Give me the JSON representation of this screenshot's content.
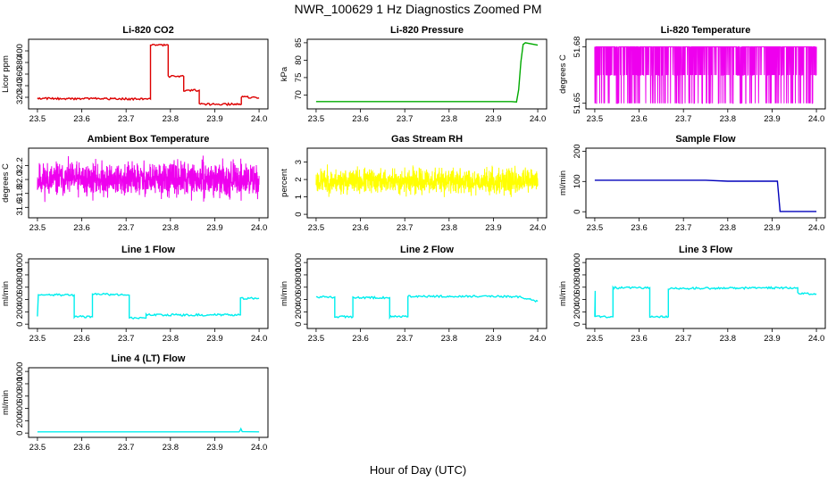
{
  "title": "NWR_100629  1 Hz Diagnostics Zoomed PM",
  "xlabel": "Hour of Day (UTC)",
  "chart_data": [
    {
      "type": "line",
      "title": "Li-820 CO2",
      "ylabel": "Licor ppm",
      "color": "#dd0000",
      "xlim": [
        23.48,
        24.02
      ],
      "ylim": [
        300,
        420
      ],
      "xticks": [
        "23.5",
        "23.6",
        "23.7",
        "23.8",
        "23.9",
        "24.0"
      ],
      "yticks": [
        "320",
        "340",
        "360",
        "380",
        "400"
      ],
      "style": "step",
      "x": [
        23.5,
        23.755,
        23.755,
        23.795,
        23.795,
        23.83,
        23.83,
        23.865,
        23.865,
        23.96,
        23.96,
        24.0
      ],
      "y": [
        318,
        317,
        410,
        410,
        356,
        356,
        332,
        332,
        308,
        308,
        321,
        319
      ]
    },
    {
      "type": "line",
      "title": "Li-820 Pressure",
      "ylabel": "kPa",
      "color": "#00aa00",
      "xlim": [
        23.48,
        24.02
      ],
      "ylim": [
        66,
        86
      ],
      "xticks": [
        "23.5",
        "23.6",
        "23.7",
        "23.8",
        "23.9",
        "24.0"
      ],
      "yticks": [
        "70",
        "75",
        "80",
        "85"
      ],
      "style": "line",
      "x": [
        23.5,
        23.94,
        23.952,
        23.957,
        23.962,
        23.967,
        23.972,
        24.0
      ],
      "y": [
        68.1,
        68.1,
        68.0,
        71.5,
        79.5,
        84.5,
        85.0,
        84.3
      ]
    },
    {
      "type": "line",
      "title": "Li-820 Temperature",
      "ylabel": "degrees C",
      "color": "#ee00ee",
      "xlim": [
        23.48,
        24.02
      ],
      "ylim": [
        51.647,
        51.684
      ],
      "xticks": [
        "23.5",
        "23.6",
        "23.7",
        "23.8",
        "23.9",
        "24.0"
      ],
      "yticks": [
        "51.65",
        "51.68"
      ],
      "style": "noise",
      "levels": [
        51.65,
        51.665,
        51.68
      ],
      "noise_seed": 7
    },
    {
      "type": "line",
      "title": "Ambient Box Temperature",
      "ylabel": "degrees C",
      "color": "#ee00ee",
      "xlim": [
        23.48,
        24.02
      ],
      "ylim": [
        31.45,
        32.45
      ],
      "xticks": [
        "23.5",
        "23.6",
        "23.7",
        "23.8",
        "23.9",
        "24.0"
      ],
      "yticks": [
        "31.6",
        "31.8",
        "32.0",
        "32.2"
      ],
      "style": "noise",
      "center": 32.0,
      "spread": 0.22,
      "noise_seed": 11
    },
    {
      "type": "line",
      "title": "Gas Stream RH",
      "ylabel": "percent",
      "color": "#ffff00",
      "xlim": [
        23.48,
        24.02
      ],
      "ylim": [
        -0.2,
        3.8
      ],
      "xticks": [
        "23.5",
        "23.6",
        "23.7",
        "23.8",
        "23.9",
        "24.0"
      ],
      "yticks": [
        "0",
        "1",
        "2",
        "3"
      ],
      "style": "noise",
      "center": 1.9,
      "spread": 0.65,
      "noise_seed": 23
    },
    {
      "type": "line",
      "title": "Sample Flow",
      "ylabel": "ml/min",
      "color": "#0000bb",
      "xlim": [
        23.48,
        24.02
      ],
      "ylim": [
        -20,
        210
      ],
      "xticks": [
        "23.5",
        "23.6",
        "23.7",
        "23.8",
        "23.9",
        "24.0"
      ],
      "yticks": [
        "0",
        "100",
        "200"
      ],
      "style": "line",
      "x": [
        23.5,
        23.75,
        23.8,
        23.9,
        23.912,
        23.918,
        24.0
      ],
      "y": [
        104,
        104,
        101,
        101,
        101,
        1,
        1
      ]
    },
    {
      "type": "line",
      "title": "Line 1 Flow",
      "ylabel": "ml/min",
      "color": "#00eeee",
      "xlim": [
        23.48,
        24.02
      ],
      "ylim": [
        -70,
        1060
      ],
      "xticks": [
        "23.5",
        "23.6",
        "23.7",
        "23.8",
        "23.9",
        "24.0"
      ],
      "yticks": [
        "0",
        "200",
        "400",
        "600",
        "800",
        "1000"
      ],
      "style": "step",
      "x": [
        23.5,
        23.502,
        23.583,
        23.583,
        23.624,
        23.624,
        23.707,
        23.707,
        23.745,
        23.745,
        23.958,
        23.958,
        24.0
      ],
      "y": [
        120,
        480,
        470,
        120,
        120,
        490,
        470,
        100,
        100,
        150,
        150,
        420,
        420
      ]
    },
    {
      "type": "line",
      "title": "Line 2 Flow",
      "ylabel": "ml/min",
      "color": "#00eeee",
      "xlim": [
        23.48,
        24.02
      ],
      "ylim": [
        -70,
        1060
      ],
      "xticks": [
        "23.5",
        "23.6",
        "23.7",
        "23.8",
        "23.9",
        "24.0"
      ],
      "yticks": [
        "0",
        "200",
        "400",
        "600",
        "800",
        "1000"
      ],
      "style": "step",
      "x": [
        23.5,
        23.542,
        23.542,
        23.583,
        23.583,
        23.666,
        23.666,
        23.707,
        23.707,
        23.915,
        23.958,
        24.0
      ],
      "y": [
        440,
        440,
        120,
        120,
        430,
        430,
        120,
        120,
        450,
        450,
        440,
        370
      ]
    },
    {
      "type": "line",
      "title": "Line 3 Flow",
      "ylabel": "ml/min",
      "color": "#00eeee",
      "xlim": [
        23.48,
        24.02
      ],
      "ylim": [
        -70,
        1060
      ],
      "xticks": [
        "23.5",
        "23.6",
        "23.7",
        "23.8",
        "23.9",
        "24.0"
      ],
      "yticks": [
        "0",
        "200",
        "400",
        "600",
        "800",
        "1000"
      ],
      "style": "step",
      "x": [
        23.5,
        23.501,
        23.501,
        23.541,
        23.541,
        23.624,
        23.624,
        23.666,
        23.666,
        23.958,
        23.958,
        24.0
      ],
      "y": [
        120,
        540,
        120,
        120,
        590,
        590,
        120,
        120,
        580,
        590,
        500,
        490
      ]
    },
    {
      "type": "line",
      "title": "Line 4 (LT) Flow",
      "ylabel": "ml/min",
      "color": "#00eeee",
      "xlim": [
        23.48,
        24.02
      ],
      "ylim": [
        -70,
        1060
      ],
      "xticks": [
        "23.5",
        "23.6",
        "23.7",
        "23.8",
        "23.9",
        "24.0"
      ],
      "yticks": [
        "0",
        "200",
        "400",
        "600",
        "800",
        "1000"
      ],
      "style": "line",
      "x": [
        23.5,
        23.955,
        23.957,
        23.959,
        23.962,
        24.0
      ],
      "y": [
        20,
        20,
        40,
        70,
        22,
        20
      ]
    }
  ]
}
